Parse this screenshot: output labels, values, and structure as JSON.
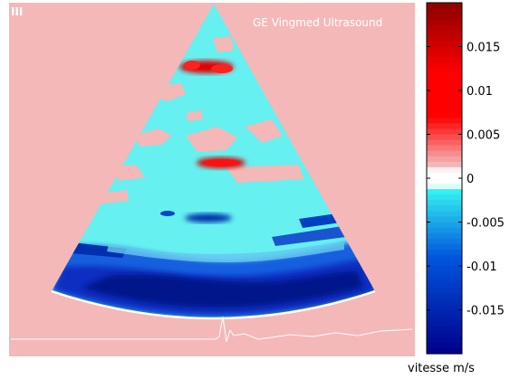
{
  "chart_data": {
    "type": "heatmap",
    "title": "",
    "watermark": "GE Vingmed Ultrasound",
    "corner_mark": "III",
    "colorbar": {
      "label": "vitesse m/s",
      "min": -0.02,
      "max": 0.02,
      "ticks": [
        0.015,
        0.01,
        0.005,
        0,
        -0.005,
        -0.01,
        -0.015
      ],
      "tick_labels": [
        "0.015",
        "0.01",
        "0.005",
        "0",
        "-0.005",
        "-0.01",
        "-0.015"
      ]
    },
    "colors": {
      "background": "#f4b8b8",
      "sector_base": "#66f0f0",
      "positive_max": "#8b0000",
      "positive_mid": "#ff0000",
      "positive_low": "#f4b8b8",
      "zero": "#ffffff",
      "negative_low": "#33f0f0",
      "negative_mid": "#0055dd",
      "negative_max": "#00008b"
    }
  }
}
